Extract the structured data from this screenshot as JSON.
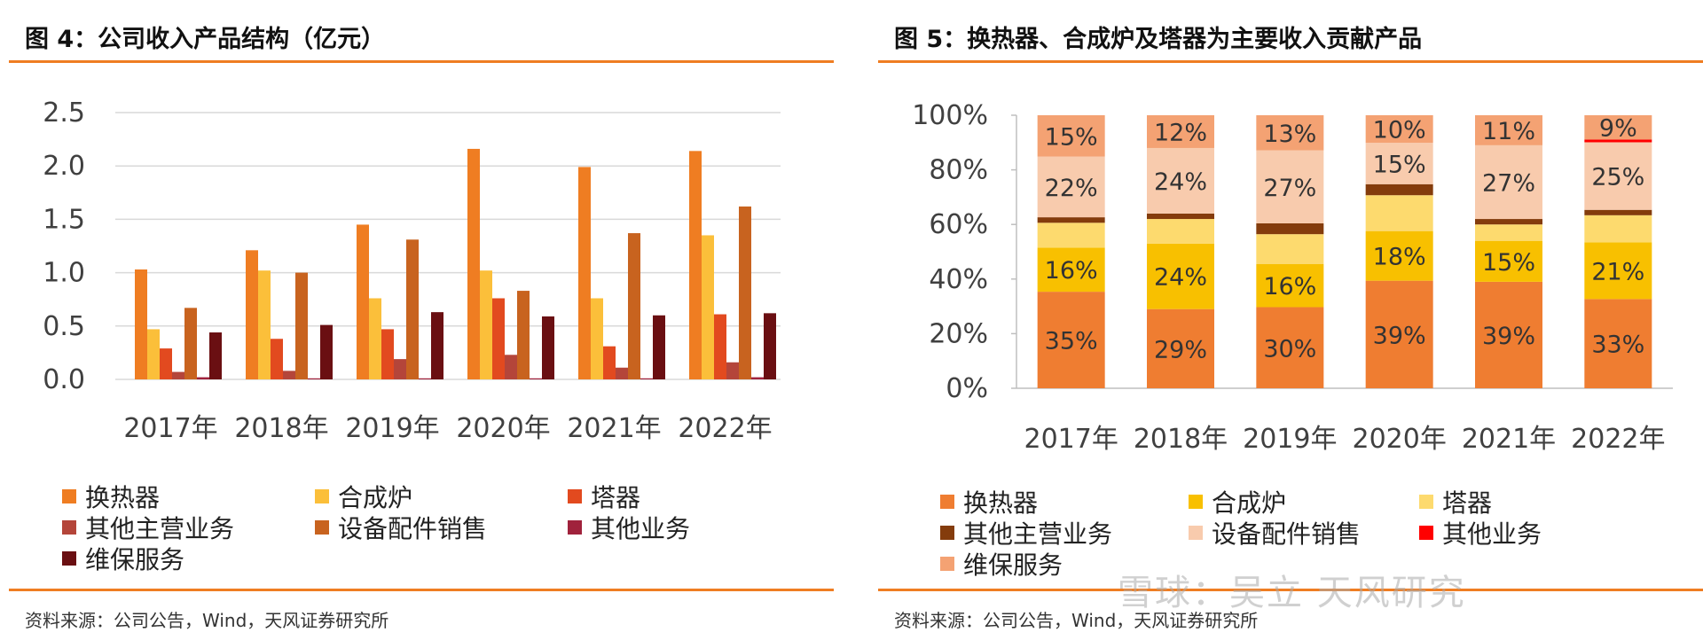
{
  "left": {
    "title": "图 4：公司收入产品结构（亿元）",
    "source": "资料来源：公司公告，Wind，天风证券研究所"
  },
  "right": {
    "title": "图 5：换热器、合成炉及塔器为主要收入贡献产品",
    "source": "资料来源：公司公告，Wind，天风证券研究所"
  },
  "watermark": "雪球：吴立 天风研究",
  "chart_data": [
    {
      "type": "bar",
      "title": "图 4：公司收入产品结构（亿元）",
      "categories": [
        "2017年",
        "2018年",
        "2019年",
        "2020年",
        "2021年",
        "2022年"
      ],
      "ylim": [
        0,
        2.5
      ],
      "yticks": [
        "0.0",
        "0.5",
        "1.0",
        "1.5",
        "2.0",
        "2.5"
      ],
      "ytick_values": [
        0,
        0.5,
        1.0,
        1.5,
        2.0,
        2.5
      ],
      "grid": true,
      "legend_position": "bottom",
      "series": [
        {
          "name": "换热器",
          "color": "#ef7d22",
          "values": [
            1.03,
            1.21,
            1.45,
            2.16,
            1.99,
            2.14
          ]
        },
        {
          "name": "合成炉",
          "color": "#fbbf3a",
          "values": [
            0.47,
            1.02,
            0.76,
            1.02,
            0.76,
            1.35
          ]
        },
        {
          "name": "塔器",
          "color": "#e24a1f",
          "values": [
            0.29,
            0.38,
            0.47,
            0.76,
            0.31,
            0.61
          ]
        },
        {
          "name": "其他主营业务",
          "color": "#b4453a",
          "values": [
            0.07,
            0.08,
            0.19,
            0.23,
            0.11,
            0.16
          ]
        },
        {
          "name": "设备配件销售",
          "color": "#c8631f",
          "values": [
            0.67,
            1.0,
            1.31,
            0.83,
            1.37,
            1.62
          ]
        },
        {
          "name": "其他业务",
          "color": "#a0223c",
          "values": [
            0.02,
            0.01,
            0.01,
            0.01,
            0.01,
            0.02
          ]
        },
        {
          "name": "维保服务",
          "color": "#6a0f12",
          "values": [
            0.44,
            0.51,
            0.63,
            0.59,
            0.6,
            0.62
          ]
        }
      ]
    },
    {
      "type": "bar",
      "stacked": true,
      "title": "图 5：换热器、合成炉及塔器为主要收入贡献产品",
      "categories": [
        "2017年",
        "2018年",
        "2019年",
        "2020年",
        "2021年",
        "2022年"
      ],
      "ylim": [
        0,
        100
      ],
      "yticks": [
        "0%",
        "20%",
        "40%",
        "60%",
        "80%",
        "100%"
      ],
      "ytick_values": [
        0,
        20,
        40,
        60,
        80,
        100
      ],
      "grid": false,
      "legend_position": "bottom",
      "series": [
        {
          "name": "换热器",
          "color": "#ef7d31",
          "values": [
            35,
            29,
            30,
            39,
            39,
            33
          ],
          "labels": [
            "35%",
            "29%",
            "30%",
            "39%",
            "39%",
            "33%"
          ]
        },
        {
          "name": "合成炉",
          "color": "#f8c000",
          "values": [
            16,
            24,
            16,
            18,
            15,
            21
          ],
          "labels": [
            "16%",
            "24%",
            "16%",
            "18%",
            "15%",
            "21%"
          ]
        },
        {
          "name": "塔器",
          "color": "#fdda6e",
          "values": [
            9,
            9,
            11,
            13,
            6,
            10
          ],
          "labels": [
            "",
            "",
            "",
            "",
            "",
            ""
          ]
        },
        {
          "name": "其他主营业务",
          "color": "#843c0c",
          "values": [
            2,
            2,
            4,
            4,
            2,
            2
          ],
          "labels": [
            "",
            "",
            "",
            "",
            "",
            ""
          ]
        },
        {
          "name": "设备配件销售",
          "color": "#f8cbad",
          "values": [
            22,
            24,
            27,
            15,
            27,
            25
          ],
          "labels": [
            "22%",
            "24%",
            "27%",
            "15%",
            "27%",
            "25%"
          ]
        },
        {
          "name": "其他业务",
          "color": "#ff0000",
          "values": [
            0,
            0,
            0,
            0,
            0,
            1
          ],
          "labels": [
            "",
            "",
            "",
            "",
            "",
            ""
          ]
        },
        {
          "name": "维保服务",
          "color": "#f4a273",
          "values": [
            15,
            12,
            13,
            10,
            11,
            9
          ],
          "labels": [
            "15%",
            "12%",
            "13%",
            "10%",
            "11%",
            "9%"
          ]
        }
      ]
    }
  ]
}
